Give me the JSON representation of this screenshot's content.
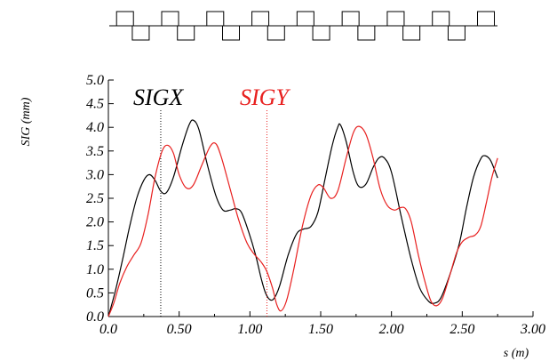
{
  "chart_data": {
    "type": "line",
    "ylabel": "SIG (mm)",
    "xlabel": "s (m)",
    "xlim": [
      0,
      3
    ],
    "ylim": [
      0,
      5
    ],
    "x_ticks": [
      "0.0",
      "0.50",
      "1.00",
      "1.50",
      "2.00",
      "2.50",
      "3.00"
    ],
    "y_ticks": [
      "0.0",
      "0.5",
      "1.0",
      "1.5",
      "2.0",
      "2.5",
      "3.0",
      "3.5",
      "4.0",
      "4.5",
      "5.0"
    ],
    "grid": false,
    "series": [
      {
        "name": "SIGX",
        "color": "#000000",
        "label_marker_x": 0.37,
        "points": [
          [
            0,
            0
          ],
          [
            0.05,
            0.55
          ],
          [
            0.1,
            1.2
          ],
          [
            0.15,
            1.9
          ],
          [
            0.2,
            2.5
          ],
          [
            0.25,
            2.88
          ],
          [
            0.29,
            3.0
          ],
          [
            0.33,
            2.88
          ],
          [
            0.37,
            2.65
          ],
          [
            0.41,
            2.62
          ],
          [
            0.46,
            2.95
          ],
          [
            0.52,
            3.6
          ],
          [
            0.57,
            4.05
          ],
          [
            0.6,
            4.15
          ],
          [
            0.64,
            3.95
          ],
          [
            0.7,
            3.2
          ],
          [
            0.76,
            2.55
          ],
          [
            0.81,
            2.25
          ],
          [
            0.86,
            2.25
          ],
          [
            0.9,
            2.28
          ],
          [
            0.94,
            2.2
          ],
          [
            0.99,
            1.8
          ],
          [
            1.04,
            1.3
          ],
          [
            1.08,
            0.8
          ],
          [
            1.11,
            0.5
          ],
          [
            1.14,
            0.36
          ],
          [
            1.17,
            0.38
          ],
          [
            1.21,
            0.65
          ],
          [
            1.27,
            1.3
          ],
          [
            1.33,
            1.75
          ],
          [
            1.38,
            1.85
          ],
          [
            1.43,
            1.9
          ],
          [
            1.48,
            2.2
          ],
          [
            1.53,
            2.9
          ],
          [
            1.58,
            3.6
          ],
          [
            1.62,
            4.0
          ],
          [
            1.64,
            4.05
          ],
          [
            1.68,
            3.7
          ],
          [
            1.73,
            3.05
          ],
          [
            1.77,
            2.75
          ],
          [
            1.82,
            2.8
          ],
          [
            1.87,
            3.15
          ],
          [
            1.91,
            3.35
          ],
          [
            1.95,
            3.35
          ],
          [
            2.0,
            3.05
          ],
          [
            2.07,
            2.1
          ],
          [
            2.14,
            1.2
          ],
          [
            2.2,
            0.6
          ],
          [
            2.26,
            0.33
          ],
          [
            2.3,
            0.28
          ],
          [
            2.35,
            0.4
          ],
          [
            2.42,
            0.95
          ],
          [
            2.48,
            1.55
          ],
          [
            2.53,
            2.3
          ],
          [
            2.58,
            2.95
          ],
          [
            2.63,
            3.33
          ],
          [
            2.66,
            3.4
          ],
          [
            2.7,
            3.3
          ],
          [
            2.75,
            2.93
          ]
        ]
      },
      {
        "name": "SIGY",
        "color": "#e8201f",
        "label_marker_x": 1.12,
        "points": [
          [
            0,
            0
          ],
          [
            0.04,
            0.3
          ],
          [
            0.08,
            0.7
          ],
          [
            0.13,
            1.05
          ],
          [
            0.18,
            1.3
          ],
          [
            0.23,
            1.55
          ],
          [
            0.28,
            2.15
          ],
          [
            0.33,
            2.95
          ],
          [
            0.38,
            3.5
          ],
          [
            0.42,
            3.62
          ],
          [
            0.46,
            3.45
          ],
          [
            0.5,
            3.0
          ],
          [
            0.55,
            2.72
          ],
          [
            0.6,
            2.78
          ],
          [
            0.66,
            3.2
          ],
          [
            0.72,
            3.6
          ],
          [
            0.76,
            3.65
          ],
          [
            0.8,
            3.35
          ],
          [
            0.86,
            2.7
          ],
          [
            0.92,
            2.05
          ],
          [
            0.98,
            1.55
          ],
          [
            1.03,
            1.32
          ],
          [
            1.08,
            1.15
          ],
          [
            1.12,
            0.95
          ],
          [
            1.16,
            0.6
          ],
          [
            1.19,
            0.25
          ],
          [
            1.22,
            0.12
          ],
          [
            1.26,
            0.35
          ],
          [
            1.31,
            1.0
          ],
          [
            1.37,
            1.9
          ],
          [
            1.43,
            2.55
          ],
          [
            1.48,
            2.78
          ],
          [
            1.52,
            2.72
          ],
          [
            1.57,
            2.5
          ],
          [
            1.62,
            2.65
          ],
          [
            1.68,
            3.35
          ],
          [
            1.73,
            3.88
          ],
          [
            1.77,
            4.02
          ],
          [
            1.82,
            3.85
          ],
          [
            1.87,
            3.35
          ],
          [
            1.92,
            2.7
          ],
          [
            1.97,
            2.35
          ],
          [
            2.02,
            2.25
          ],
          [
            2.06,
            2.3
          ],
          [
            2.1,
            2.28
          ],
          [
            2.14,
            2.0
          ],
          [
            2.19,
            1.3
          ],
          [
            2.24,
            0.7
          ],
          [
            2.28,
            0.32
          ],
          [
            2.32,
            0.23
          ],
          [
            2.36,
            0.38
          ],
          [
            2.41,
            0.85
          ],
          [
            2.46,
            1.35
          ],
          [
            2.5,
            1.58
          ],
          [
            2.55,
            1.68
          ],
          [
            2.59,
            1.72
          ],
          [
            2.63,
            1.9
          ],
          [
            2.67,
            2.4
          ],
          [
            2.71,
            2.95
          ],
          [
            2.75,
            3.35
          ]
        ]
      }
    ]
  },
  "lattice": {
    "elements": [
      {
        "type": "up",
        "s": 0.15
      },
      {
        "type": "down",
        "s": 0.3
      },
      {
        "type": "up",
        "s": 0.58
      },
      {
        "type": "down",
        "s": 0.73
      },
      {
        "type": "up",
        "s": 1.01
      },
      {
        "type": "down",
        "s": 1.16
      },
      {
        "type": "up",
        "s": 1.44
      },
      {
        "type": "down",
        "s": 1.59
      },
      {
        "type": "up",
        "s": 1.87
      },
      {
        "type": "down",
        "s": 2.02
      },
      {
        "type": "up",
        "s": 2.3
      },
      {
        "type": "down",
        "s": 2.45
      },
      {
        "type": "up",
        "s": 2.73
      },
      {
        "type": "down",
        "s": 2.88
      },
      {
        "type": "up",
        "s": 3.16
      },
      {
        "type": "down",
        "s": 3.31
      },
      {
        "type": "up",
        "s": 3.59
      }
    ],
    "length": 3.7
  }
}
